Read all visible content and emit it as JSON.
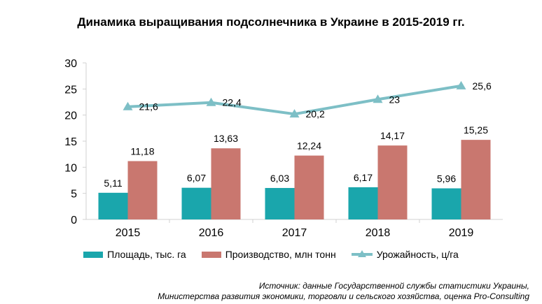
{
  "chart_data": {
    "type": "bar",
    "title": "Динамика выращивания подсолнечника в Украине в 2015-2019 гг.",
    "categories": [
      "2015",
      "2016",
      "2017",
      "2018",
      "2019"
    ],
    "ylim": [
      0,
      30
    ],
    "yticks": [
      "0",
      "5",
      "10",
      "15",
      "20",
      "25",
      "30"
    ],
    "grid": false,
    "legend_position": "bottom",
    "series": [
      {
        "name": "Площадь, тыс. га",
        "type": "bar",
        "color": "#1AA6AC",
        "values": [
          5.11,
          6.07,
          6.03,
          6.17,
          5.96
        ],
        "labels": [
          "5,11",
          "6,07",
          "6,03",
          "6,17",
          "5,96"
        ]
      },
      {
        "name": "Производство, млн тонн",
        "type": "bar",
        "color": "#C9776F",
        "values": [
          11.18,
          13.63,
          12.24,
          14.17,
          15.25
        ],
        "labels": [
          "11,18",
          "13,63",
          "12,24",
          "14,17",
          "15,25"
        ]
      },
      {
        "name": "Урожайность, ц/га",
        "type": "line",
        "color": "#7DBFC6",
        "values": [
          21.6,
          22.4,
          20.2,
          23,
          25.6
        ],
        "labels": [
          "21,6",
          "22,4",
          "20,2",
          "23",
          "25,6"
        ]
      }
    ]
  },
  "source_lines": [
    "Источник: данные Государственной службы статистики Украины,",
    "Министерства развития экономики, торговли и сельского хозяйства, оценка Pro-Consulting"
  ]
}
